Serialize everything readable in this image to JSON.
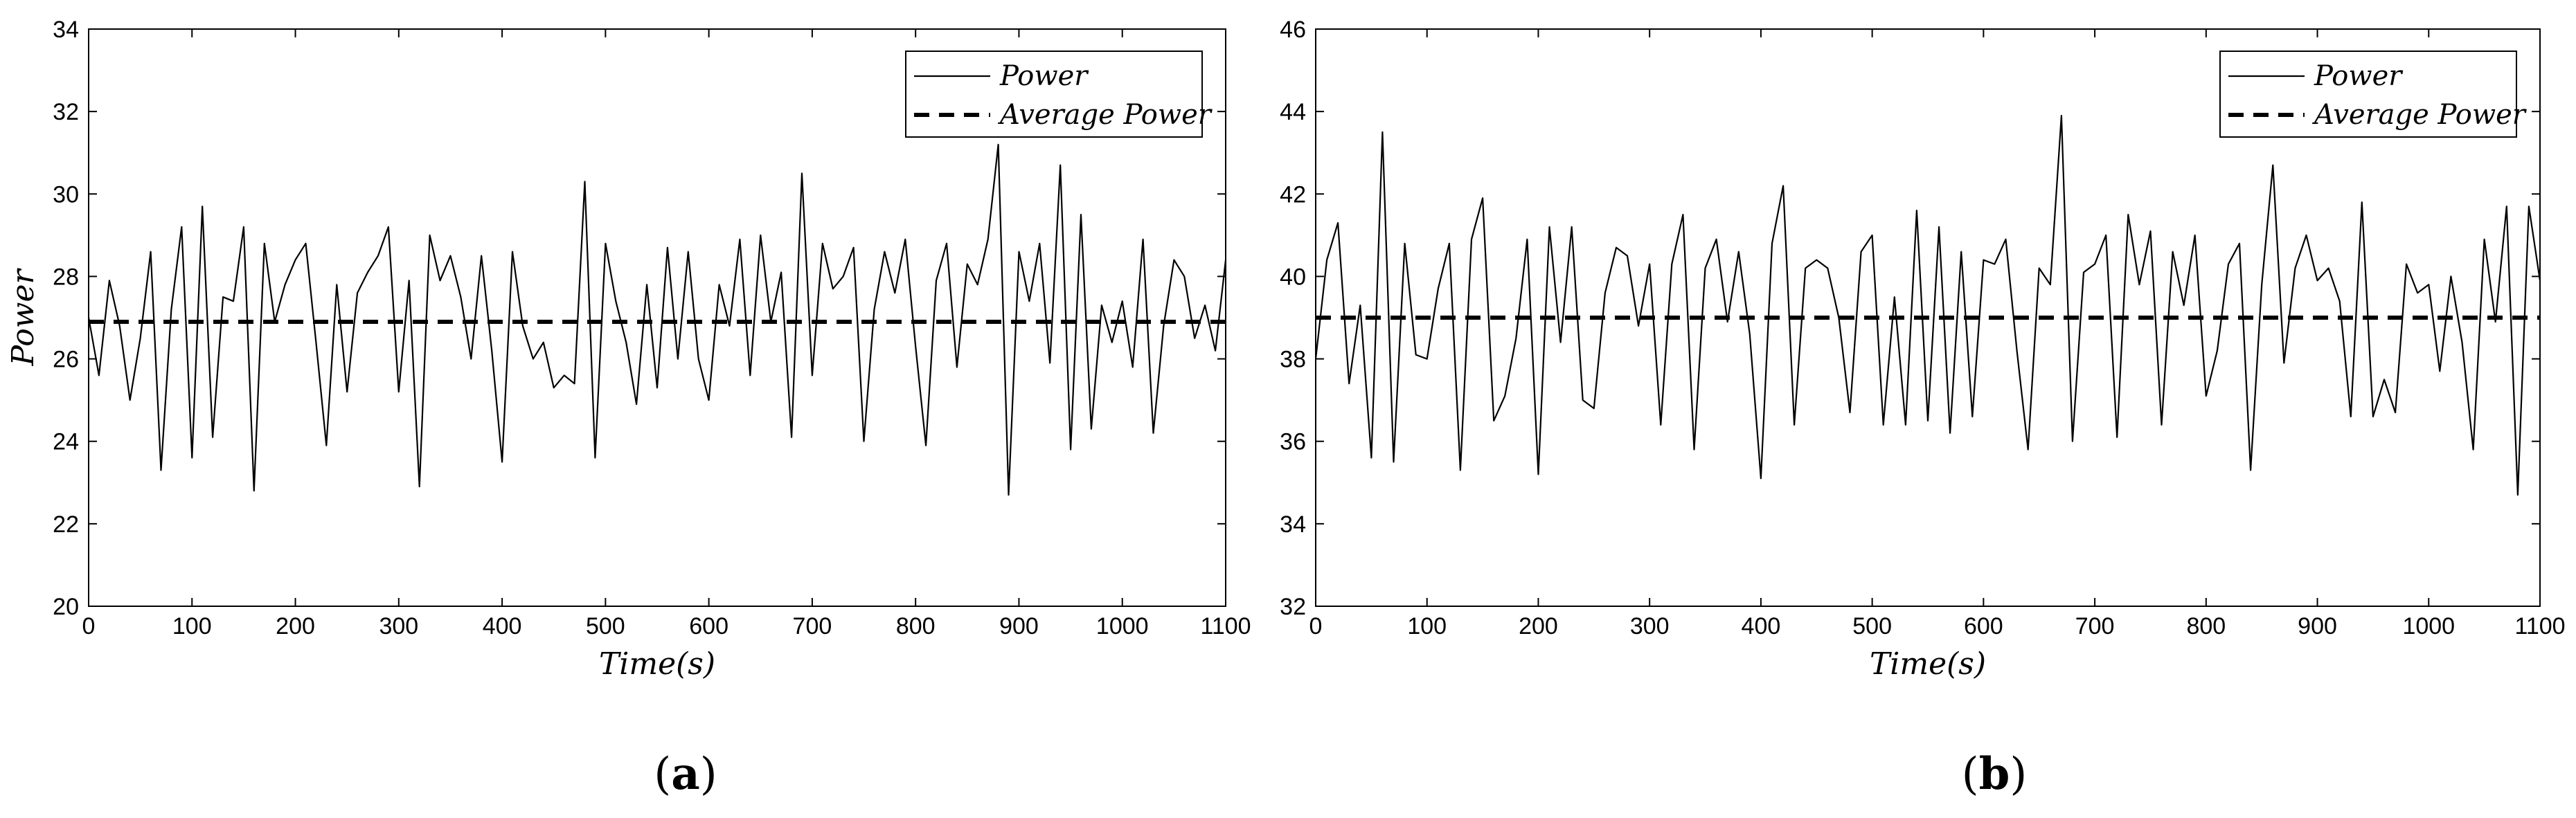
{
  "chart_data": [
    {
      "type": "line",
      "panel_label": "a",
      "xlabel": "Time(s)",
      "ylabel": "Power",
      "xlim": [
        0,
        1100
      ],
      "ylim": [
        20,
        34
      ],
      "xticks": [
        0,
        100,
        200,
        300,
        400,
        500,
        600,
        700,
        800,
        900,
        1000,
        1100
      ],
      "yticks": [
        20,
        22,
        24,
        26,
        28,
        30,
        32,
        34
      ],
      "legend_position": "top-right",
      "grid": false,
      "series": [
        {
          "name": "Power",
          "style": "solid",
          "x": [
            0,
            10,
            20,
            30,
            40,
            50,
            60,
            70,
            80,
            90,
            100,
            110,
            120,
            130,
            140,
            150,
            160,
            170,
            180,
            190,
            200,
            210,
            220,
            230,
            240,
            250,
            260,
            270,
            280,
            290,
            300,
            310,
            320,
            330,
            340,
            350,
            360,
            370,
            380,
            390,
            400,
            410,
            420,
            430,
            440,
            450,
            460,
            470,
            480,
            490,
            500,
            510,
            520,
            530,
            540,
            550,
            560,
            570,
            580,
            590,
            600,
            610,
            620,
            630,
            640,
            650,
            660,
            670,
            680,
            690,
            700,
            710,
            720,
            730,
            740,
            750,
            760,
            770,
            780,
            790,
            800,
            810,
            820,
            830,
            840,
            850,
            860,
            870,
            880,
            890,
            900,
            910,
            920,
            930,
            940,
            950,
            960,
            970,
            980,
            990,
            1000,
            1010,
            1020,
            1030,
            1040,
            1050,
            1060,
            1070,
            1080,
            1090,
            1100
          ],
          "y": [
            27.0,
            25.6,
            27.9,
            26.8,
            25.0,
            26.5,
            28.6,
            23.3,
            27.2,
            29.2,
            23.6,
            29.7,
            24.1,
            27.5,
            27.4,
            29.2,
            22.8,
            28.8,
            26.9,
            27.8,
            28.4,
            28.8,
            26.4,
            23.9,
            27.8,
            25.2,
            27.6,
            28.1,
            28.5,
            29.2,
            25.2,
            27.9,
            22.9,
            29.0,
            27.9,
            28.5,
            27.5,
            26.0,
            28.5,
            26.2,
            23.5,
            28.6,
            26.8,
            26.0,
            26.4,
            25.3,
            25.6,
            25.4,
            30.3,
            23.6,
            28.8,
            27.4,
            26.4,
            24.9,
            27.8,
            25.3,
            28.7,
            26.0,
            28.6,
            26.0,
            25.0,
            27.8,
            26.8,
            28.9,
            25.6,
            29.0,
            26.9,
            28.1,
            24.1,
            30.5,
            25.6,
            28.8,
            27.7,
            28.0,
            28.7,
            24.0,
            27.2,
            28.6,
            27.6,
            28.9,
            26.3,
            23.9,
            27.9,
            28.8,
            25.8,
            28.3,
            27.8,
            28.9,
            31.2,
            22.7,
            28.6,
            27.4,
            28.8,
            25.9,
            30.7,
            23.8,
            29.5,
            24.3,
            27.3,
            26.4,
            27.4,
            25.8,
            28.9,
            24.2,
            26.8,
            28.4,
            28.0,
            26.5,
            27.3,
            26.2,
            28.4
          ]
        },
        {
          "name": "Average Power",
          "style": "dashed",
          "x": [
            0,
            1100
          ],
          "y": [
            26.9,
            26.9
          ]
        }
      ]
    },
    {
      "type": "line",
      "panel_label": "b",
      "xlabel": "Time(s)",
      "ylabel": "",
      "xlim": [
        0,
        1100
      ],
      "ylim": [
        32,
        46
      ],
      "xticks": [
        0,
        100,
        200,
        300,
        400,
        500,
        600,
        700,
        800,
        900,
        1000,
        1100
      ],
      "yticks": [
        32,
        34,
        36,
        38,
        40,
        42,
        44,
        46
      ],
      "legend_position": "top-right",
      "grid": false,
      "series": [
        {
          "name": "Power",
          "style": "solid",
          "x": [
            0,
            10,
            20,
            30,
            40,
            50,
            60,
            70,
            80,
            90,
            100,
            110,
            120,
            130,
            140,
            150,
            160,
            170,
            180,
            190,
            200,
            210,
            220,
            230,
            240,
            250,
            260,
            270,
            280,
            290,
            300,
            310,
            320,
            330,
            340,
            350,
            360,
            370,
            380,
            390,
            400,
            410,
            420,
            430,
            440,
            450,
            460,
            470,
            480,
            490,
            500,
            510,
            520,
            530,
            540,
            550,
            560,
            570,
            580,
            590,
            600,
            610,
            620,
            630,
            640,
            650,
            660,
            670,
            680,
            690,
            700,
            710,
            720,
            730,
            740,
            750,
            760,
            770,
            780,
            790,
            800,
            810,
            820,
            830,
            840,
            850,
            860,
            870,
            880,
            890,
            900,
            910,
            920,
            930,
            940,
            950,
            960,
            970,
            980,
            990,
            1000,
            1010,
            1020,
            1030,
            1040,
            1050,
            1060,
            1070,
            1080,
            1090,
            1100
          ],
          "y": [
            38.0,
            40.4,
            41.3,
            37.4,
            39.3,
            35.6,
            43.5,
            35.5,
            40.8,
            38.1,
            38.0,
            39.7,
            40.8,
            35.3,
            40.9,
            41.9,
            36.5,
            37.1,
            38.5,
            40.9,
            35.2,
            41.2,
            38.4,
            41.2,
            37.0,
            36.8,
            39.6,
            40.7,
            40.5,
            38.8,
            40.3,
            36.4,
            40.3,
            41.5,
            35.8,
            40.2,
            40.9,
            38.9,
            40.6,
            38.6,
            35.1,
            40.8,
            42.2,
            36.4,
            40.2,
            40.4,
            40.2,
            39.0,
            36.7,
            40.6,
            41.0,
            36.4,
            39.5,
            36.4,
            41.6,
            36.5,
            41.2,
            36.2,
            40.6,
            36.6,
            40.4,
            40.3,
            40.9,
            38.2,
            35.8,
            40.2,
            39.8,
            43.9,
            36.0,
            40.1,
            40.3,
            41.0,
            36.1,
            41.5,
            39.8,
            41.1,
            36.4,
            40.6,
            39.3,
            41.0,
            37.1,
            38.2,
            40.3,
            40.8,
            35.3,
            39.8,
            42.7,
            37.9,
            40.2,
            41.0,
            39.9,
            40.2,
            39.4,
            36.6,
            41.8,
            36.6,
            37.5,
            36.7,
            40.3,
            39.6,
            39.8,
            37.7,
            40.0,
            38.4,
            35.8,
            40.9,
            38.9,
            41.7,
            34.7,
            41.7,
            39.9
          ]
        },
        {
          "name": "Average Power",
          "style": "dashed",
          "x": [
            0,
            1100
          ],
          "y": [
            39.0,
            39.0
          ]
        }
      ]
    }
  ]
}
